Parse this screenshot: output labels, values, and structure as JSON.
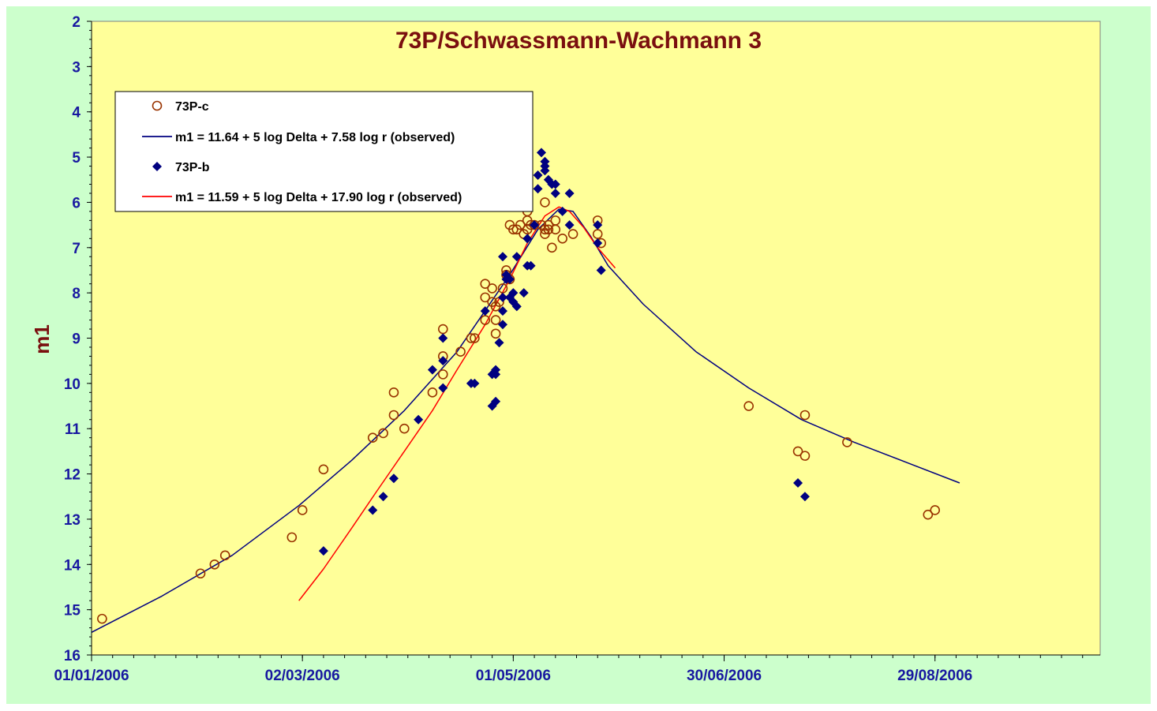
{
  "colors": {
    "background": "#ccffcc",
    "plot_area": "#ffff99",
    "title": "#7a0f0f",
    "tick_labels": "#1818a0",
    "series_c": "#993300",
    "series_b": "#000080",
    "fit_c": "#000080",
    "fit_b": "#ff0000"
  },
  "chart_data": {
    "type": "scatter",
    "title": "73P/Schwassmann-Wachmann  3",
    "xlabel": "",
    "ylabel": "m1",
    "x_axis": {
      "type": "date",
      "range": [
        "2006-01-01",
        "2006-10-15"
      ],
      "tick_labels": [
        "01/01/2006",
        "02/03/2006",
        "01/05/2006",
        "30/06/2006",
        "29/08/2006"
      ],
      "tick_dates": [
        "2006-01-01",
        "2006-03-02",
        "2006-05-01",
        "2006-06-30",
        "2006-08-29"
      ]
    },
    "y_axis": {
      "range": [
        2,
        16
      ],
      "reversed": true,
      "tick_labels": [
        "2",
        "3",
        "4",
        "5",
        "6",
        "7",
        "8",
        "9",
        "10",
        "11",
        "12",
        "13",
        "14",
        "15",
        "16"
      ]
    },
    "grid": false,
    "legend": {
      "placement": "top-left",
      "entries": [
        {
          "label": "73P-c",
          "kind": "marker-circle",
          "color": "#993300"
        },
        {
          "label": "m1 = 11.64 + 5 log Delta + 7.58 log r  (observed)",
          "kind": "line",
          "color": "#000080"
        },
        {
          "label": "73P-b",
          "kind": "marker-diamond",
          "color": "#000080"
        },
        {
          "label": "m1 = 11.59 + 5 log Delta + 17.90 log r (observed)",
          "kind": "line",
          "color": "#ff0000"
        }
      ]
    },
    "series": [
      {
        "name": "73P-c",
        "marker": "circle",
        "color": "#993300",
        "points": [
          [
            "2006-01-04",
            15.2
          ],
          [
            "2006-02-01",
            14.2
          ],
          [
            "2006-02-05",
            14.0
          ],
          [
            "2006-02-08",
            13.8
          ],
          [
            "2006-02-27",
            13.4
          ],
          [
            "2006-03-02",
            12.8
          ],
          [
            "2006-03-08",
            11.9
          ],
          [
            "2006-03-22",
            11.2
          ],
          [
            "2006-03-25",
            11.1
          ],
          [
            "2006-03-28",
            10.2
          ],
          [
            "2006-03-28",
            10.7
          ],
          [
            "2006-03-31",
            11.0
          ],
          [
            "2006-04-08",
            10.2
          ],
          [
            "2006-04-11",
            9.8
          ],
          [
            "2006-04-11",
            9.4
          ],
          [
            "2006-04-11",
            8.8
          ],
          [
            "2006-04-16",
            9.3
          ],
          [
            "2006-04-19",
            9.0
          ],
          [
            "2006-04-20",
            9.0
          ],
          [
            "2006-04-23",
            8.6
          ],
          [
            "2006-04-23",
            8.1
          ],
          [
            "2006-04-23",
            7.8
          ],
          [
            "2006-04-25",
            7.9
          ],
          [
            "2006-04-25",
            8.2
          ],
          [
            "2006-04-26",
            8.3
          ],
          [
            "2006-04-26",
            8.6
          ],
          [
            "2006-04-26",
            8.9
          ],
          [
            "2006-04-27",
            8.2
          ],
          [
            "2006-04-28",
            7.9
          ],
          [
            "2006-04-29",
            7.5
          ],
          [
            "2006-04-29",
            7.6
          ],
          [
            "2006-04-30",
            7.7
          ],
          [
            "2006-04-30",
            6.5
          ],
          [
            "2006-05-01",
            6.6
          ],
          [
            "2006-05-02",
            6.6
          ],
          [
            "2006-05-03",
            6.5
          ],
          [
            "2006-05-04",
            6.7
          ],
          [
            "2006-05-05",
            6.2
          ],
          [
            "2006-05-05",
            6.4
          ],
          [
            "2006-05-05",
            6.6
          ],
          [
            "2006-05-06",
            6.5
          ],
          [
            "2006-05-07",
            6.5
          ],
          [
            "2006-05-09",
            6.5
          ],
          [
            "2006-05-10",
            6.0
          ],
          [
            "2006-05-10",
            6.6
          ],
          [
            "2006-05-10",
            6.7
          ],
          [
            "2006-05-11",
            6.5
          ],
          [
            "2006-05-11",
            6.6
          ],
          [
            "2006-05-12",
            7.0
          ],
          [
            "2006-05-13",
            6.4
          ],
          [
            "2006-05-13",
            6.6
          ],
          [
            "2006-05-15",
            6.8
          ],
          [
            "2006-05-18",
            6.7
          ],
          [
            "2006-05-25",
            6.4
          ],
          [
            "2006-05-25",
            6.7
          ],
          [
            "2006-05-26",
            6.9
          ],
          [
            "2006-07-07",
            10.5
          ],
          [
            "2006-07-21",
            11.5
          ],
          [
            "2006-07-23",
            10.7
          ],
          [
            "2006-07-23",
            11.6
          ],
          [
            "2006-08-04",
            11.3
          ],
          [
            "2006-08-27",
            12.9
          ],
          [
            "2006-08-29",
            12.8
          ]
        ]
      },
      {
        "name": "73P-b",
        "marker": "diamond",
        "color": "#000080",
        "points": [
          [
            "2006-03-08",
            13.7
          ],
          [
            "2006-03-22",
            12.8
          ],
          [
            "2006-03-25",
            12.5
          ],
          [
            "2006-03-28",
            12.1
          ],
          [
            "2006-04-04",
            10.8
          ],
          [
            "2006-04-08",
            9.7
          ],
          [
            "2006-04-11",
            10.1
          ],
          [
            "2006-04-11",
            9.5
          ],
          [
            "2006-04-11",
            9.0
          ],
          [
            "2006-04-19",
            10.0
          ],
          [
            "2006-04-20",
            10.0
          ],
          [
            "2006-04-23",
            8.4
          ],
          [
            "2006-04-25",
            10.5
          ],
          [
            "2006-04-26",
            10.4
          ],
          [
            "2006-04-25",
            9.8
          ],
          [
            "2006-04-26",
            9.7
          ],
          [
            "2006-04-26",
            9.8
          ],
          [
            "2006-04-27",
            9.1
          ],
          [
            "2006-04-28",
            8.7
          ],
          [
            "2006-04-28",
            8.4
          ],
          [
            "2006-04-28",
            8.1
          ],
          [
            "2006-04-28",
            7.2
          ],
          [
            "2006-04-29",
            7.6
          ],
          [
            "2006-04-29",
            7.7
          ],
          [
            "2006-04-30",
            8.1
          ],
          [
            "2006-04-30",
            7.7
          ],
          [
            "2006-05-01",
            8.0
          ],
          [
            "2006-05-01",
            8.2
          ],
          [
            "2006-05-02",
            8.3
          ],
          [
            "2006-05-02",
            7.2
          ],
          [
            "2006-05-04",
            8.0
          ],
          [
            "2006-05-05",
            7.4
          ],
          [
            "2006-05-05",
            6.8
          ],
          [
            "2006-05-06",
            7.4
          ],
          [
            "2006-05-07",
            6.5
          ],
          [
            "2006-05-08",
            5.4
          ],
          [
            "2006-05-08",
            5.7
          ],
          [
            "2006-05-09",
            4.9
          ],
          [
            "2006-05-10",
            5.1
          ],
          [
            "2006-05-10",
            5.2
          ],
          [
            "2006-05-10",
            5.3
          ],
          [
            "2006-05-11",
            5.5
          ],
          [
            "2006-05-12",
            5.6
          ],
          [
            "2006-05-13",
            5.6
          ],
          [
            "2006-05-13",
            5.8
          ],
          [
            "2006-05-15",
            6.2
          ],
          [
            "2006-05-17",
            5.8
          ],
          [
            "2006-05-17",
            6.5
          ],
          [
            "2006-05-25",
            6.5
          ],
          [
            "2006-05-25",
            6.9
          ],
          [
            "2006-05-26",
            7.5
          ],
          [
            "2006-07-21",
            12.2
          ],
          [
            "2006-07-23",
            12.5
          ]
        ]
      }
    ],
    "fits": [
      {
        "name": "m1 = 11.64 + 5 log Delta + 7.58 log r  (observed)",
        "color": "#000080",
        "points": [
          [
            "2006-01-01",
            15.5
          ],
          [
            "2006-01-21",
            14.7
          ],
          [
            "2006-02-10",
            13.8
          ],
          [
            "2006-03-01",
            12.7
          ],
          [
            "2006-03-16",
            11.7
          ],
          [
            "2006-03-31",
            10.6
          ],
          [
            "2006-04-15",
            9.3
          ],
          [
            "2006-04-30",
            7.6
          ],
          [
            "2006-05-08",
            6.6
          ],
          [
            "2006-05-14",
            6.15
          ],
          [
            "2006-05-18",
            6.2
          ],
          [
            "2006-05-23",
            6.75
          ],
          [
            "2006-05-28",
            7.4
          ],
          [
            "2006-06-07",
            8.25
          ],
          [
            "2006-06-22",
            9.3
          ],
          [
            "2006-07-07",
            10.1
          ],
          [
            "2006-07-22",
            10.8
          ],
          [
            "2006-08-06",
            11.3
          ],
          [
            "2006-08-21",
            11.75
          ],
          [
            "2006-09-05",
            12.2
          ]
        ]
      },
      {
        "name": "m1 = 11.59 + 5 log Delta + 17.90 log r (observed)",
        "color": "#ff0000",
        "points": [
          [
            "2006-03-01",
            14.8
          ],
          [
            "2006-03-08",
            14.1
          ],
          [
            "2006-03-16",
            13.2
          ],
          [
            "2006-03-23",
            12.4
          ],
          [
            "2006-03-31",
            11.5
          ],
          [
            "2006-04-08",
            10.6
          ],
          [
            "2006-04-15",
            9.7
          ],
          [
            "2006-04-23",
            8.7
          ],
          [
            "2006-04-30",
            7.7
          ],
          [
            "2006-05-05",
            6.9
          ],
          [
            "2006-05-10",
            6.3
          ],
          [
            "2006-05-14",
            6.1
          ],
          [
            "2006-05-17",
            6.2
          ],
          [
            "2006-05-21",
            6.55
          ],
          [
            "2006-05-25",
            7.0
          ],
          [
            "2006-05-30",
            7.45
          ]
        ]
      }
    ]
  }
}
